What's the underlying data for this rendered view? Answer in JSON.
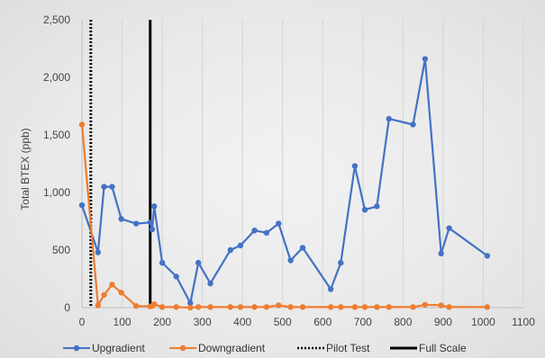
{
  "chart_data": {
    "type": "line",
    "title": "",
    "xlabel": "",
    "ylabel": "Total BTEX (ppb)",
    "xlim": [
      0,
      1100
    ],
    "ylim": [
      0,
      2500
    ],
    "x_ticks": [
      0,
      100,
      200,
      300,
      400,
      500,
      600,
      700,
      800,
      900,
      1000,
      1100
    ],
    "y_ticks": [
      0,
      500,
      1000,
      1500,
      2000,
      2500
    ],
    "x_tick_labels": [
      "0",
      "100",
      "200",
      "300",
      "400",
      "500",
      "600",
      "700",
      "800",
      "900",
      "1000",
      "1100"
    ],
    "y_tick_labels": [
      "0",
      "500",
      "1,000",
      "1,500",
      "2,000",
      "2,500"
    ],
    "grid": "vertical",
    "legend_position": "bottom",
    "series": [
      {
        "name": "Upgradient",
        "color": "#4472c4",
        "marker": true,
        "x": [
          0,
          40,
          55,
          75,
          98,
          135,
          170,
          175,
          180,
          200,
          235,
          270,
          290,
          320,
          370,
          395,
          430,
          460,
          490,
          520,
          550,
          620,
          645,
          680,
          705,
          735,
          765,
          825,
          855,
          895,
          915,
          1010
        ],
        "y": [
          890,
          480,
          1050,
          1050,
          770,
          730,
          740,
          680,
          880,
          390,
          270,
          40,
          390,
          210,
          500,
          540,
          670,
          650,
          730,
          410,
          520,
          160,
          390,
          1230,
          850,
          880,
          1640,
          1590,
          2160,
          470,
          690,
          450
        ]
      },
      {
        "name": "Downgradient",
        "color": "#ed7d31",
        "marker": true,
        "x": [
          0,
          40,
          55,
          75,
          98,
          135,
          170,
          175,
          180,
          200,
          235,
          270,
          290,
          320,
          370,
          395,
          430,
          460,
          490,
          520,
          550,
          620,
          645,
          680,
          705,
          735,
          765,
          825,
          855,
          895,
          915,
          1010
        ],
        "y": [
          1590,
          20,
          110,
          200,
          130,
          15,
          10,
          15,
          30,
          5,
          5,
          0,
          5,
          5,
          5,
          5,
          5,
          5,
          20,
          5,
          5,
          5,
          5,
          5,
          5,
          5,
          5,
          5,
          25,
          20,
          5,
          5
        ]
      },
      {
        "name": "Pilot Test",
        "color": "#000000",
        "style": "dotted",
        "x": [
          22,
          22
        ],
        "y": [
          0,
          2500
        ]
      },
      {
        "name": "Full Scale",
        "color": "#000000",
        "style": "solid-thick",
        "x": [
          170,
          170
        ],
        "y": [
          0,
          2500
        ]
      }
    ]
  }
}
